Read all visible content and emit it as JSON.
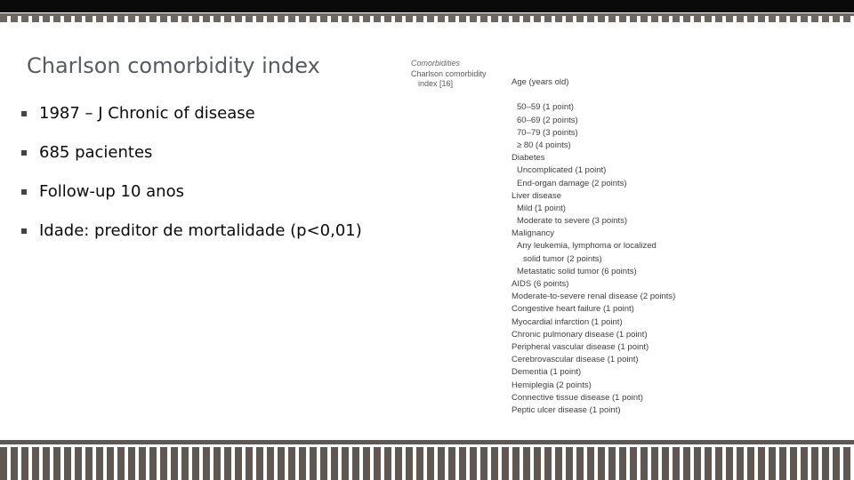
{
  "slide": {
    "title": "Charlson comorbidity index",
    "bullets": [
      "1987 – J Chronic of disease",
      "685 pacientes",
      "Follow-up 10 anos",
      "Idade: preditor de mortalidade (p<0,01)"
    ]
  },
  "table": {
    "header_title": "Comorbidities",
    "header_sub_1": "Charlson comorbidity",
    "header_sub_2": "index [16]",
    "rows": [
      {
        "text": "Age (years old)",
        "level": "main"
      },
      {
        "text": "",
        "level": "main"
      },
      {
        "text": "50–59 (1 point)",
        "level": "sub"
      },
      {
        "text": "60–69 (2 points)",
        "level": "sub"
      },
      {
        "text": "70–79 (3 points)",
        "level": "sub"
      },
      {
        "text": "≥ 80 (4 points)",
        "level": "sub"
      },
      {
        "text": "Diabetes",
        "level": "main"
      },
      {
        "text": "Uncomplicated (1 point)",
        "level": "sub"
      },
      {
        "text": "End-organ damage (2 points)",
        "level": "sub"
      },
      {
        "text": "Liver disease",
        "level": "main"
      },
      {
        "text": "Mild (1 point)",
        "level": "sub"
      },
      {
        "text": "Moderate to severe (3 points)",
        "level": "sub"
      },
      {
        "text": "Malignancy",
        "level": "main"
      },
      {
        "text": "Any leukemia, lymphoma or localized",
        "level": "sub"
      },
      {
        "text": "solid tumor (2 points)",
        "level": "subcont"
      },
      {
        "text": "Metastatic solid tumor (6 points)",
        "level": "sub"
      },
      {
        "text": "AIDS (6 points)",
        "level": "main"
      },
      {
        "text": "Moderate-to-severe renal disease (2 points)",
        "level": "main"
      },
      {
        "text": "Congestive heart failure (1 point)",
        "level": "main"
      },
      {
        "text": "Myocardial infarction (1 point)",
        "level": "main"
      },
      {
        "text": "Chronic pulmonary disease (1 point)",
        "level": "main"
      },
      {
        "text": "Peripheral vascular disease (1 point)",
        "level": "main"
      },
      {
        "text": "Cerebrovascular disease (1 point)",
        "level": "main"
      },
      {
        "text": "Dementia (1 point)",
        "level": "main"
      },
      {
        "text": "Hemiplegia (2 points)",
        "level": "main"
      },
      {
        "text": "Connective tissue disease (1 point)",
        "level": "main"
      },
      {
        "text": "Peptic ulcer disease (1 point)",
        "level": "main"
      }
    ]
  },
  "colors": {
    "title": "#545c63",
    "stripe": "#5f5752",
    "top_bar": "#0a0a0a"
  }
}
